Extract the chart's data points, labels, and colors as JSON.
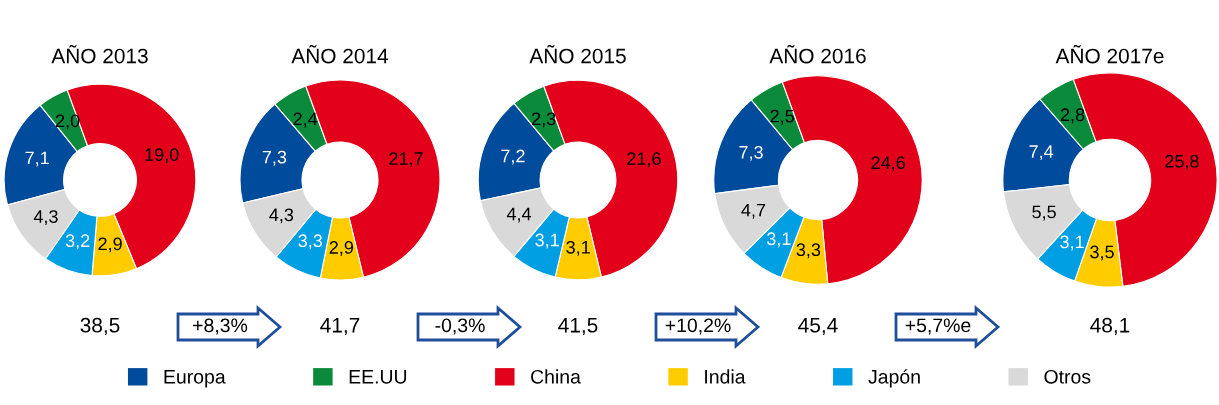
{
  "chart_data": [
    {
      "type": "donut",
      "title": "AÑO 2013",
      "categories": [
        "Europa",
        "EE.UU",
        "China",
        "India",
        "Japón",
        "Otros"
      ],
      "colors": [
        "#004b9b",
        "#0a8a3a",
        "#e2001a",
        "#ffcc00",
        "#009fe3",
        "#d9d9d9"
      ],
      "values": [
        7.1,
        2.0,
        19.0,
        2.9,
        3.2,
        4.3
      ],
      "value_labels": [
        "7,1",
        "2,0",
        "19,0",
        "2,9",
        "3,2",
        "4,3"
      ],
      "annotations": [
        "38,5",
        "+8,3%"
      ],
      "legend": "bottom"
    },
    {
      "type": "donut",
      "title": "AÑO 2014",
      "categories": [
        null,
        null,
        null,
        null,
        null,
        null
      ],
      "colors": [
        "#004b9b",
        "#0a8a3a",
        "#e2001a",
        "#ffcc00",
        "#009fe3",
        "#d9d9d9"
      ],
      "values": [
        7.3,
        2.4,
        21.7,
        2.9,
        3.3,
        4.3
      ],
      "value_labels": [
        "7,3",
        "2,4",
        "21,7",
        "2,9",
        "3,3",
        "4,3"
      ],
      "annotations": [
        "41,7",
        "-0,3%"
      ]
    },
    {
      "type": "donut",
      "title": "AÑO 2015",
      "categories": [
        null,
        null,
        null,
        null,
        null,
        null
      ],
      "colors": [
        "#004b9b",
        "#0a8a3a",
        "#e2001a",
        "#ffcc00",
        "#009fe3",
        "#d9d9d9"
      ],
      "values": [
        7.2,
        2.3,
        21.6,
        3.1,
        3.1,
        4.4
      ],
      "value_labels": [
        "7,2",
        "2,3",
        "21,6",
        "3,1",
        "3,1",
        "4,4"
      ],
      "annotations": [
        "41,5",
        "+10,2%"
      ]
    },
    {
      "type": "donut",
      "title": "AÑO 2016",
      "categories": [
        null,
        null,
        null,
        null,
        null,
        null
      ],
      "colors": [
        "#004b9b",
        "#0a8a3a",
        "#e2001a",
        "#ffcc00",
        "#009fe3",
        "#d9d9d9"
      ],
      "values": [
        7.3,
        2.5,
        24.6,
        3.3,
        3.1,
        4.7
      ],
      "value_labels": [
        "7,3",
        "2,5",
        "24,6",
        "3,3",
        "3,1",
        "4,7"
      ],
      "annotations": [
        "45,4",
        "+5,7%e"
      ]
    },
    {
      "type": "donut",
      "title": "AÑO 2017e",
      "categories": [
        null,
        null,
        null,
        null,
        null,
        null
      ],
      "colors": [
        "#004b9b",
        "#0a8a3a",
        "#e2001a",
        "#ffcc00",
        "#009fe3",
        "#d9d9d9"
      ],
      "values": [
        7.4,
        2.8,
        25.8,
        3.5,
        3.1,
        5.5
      ],
      "value_labels": [
        "7,4",
        "2,8",
        "25,8",
        "3,5",
        "3,1",
        "5,5"
      ],
      "annotations": [
        "48,1"
      ]
    }
  ]
}
